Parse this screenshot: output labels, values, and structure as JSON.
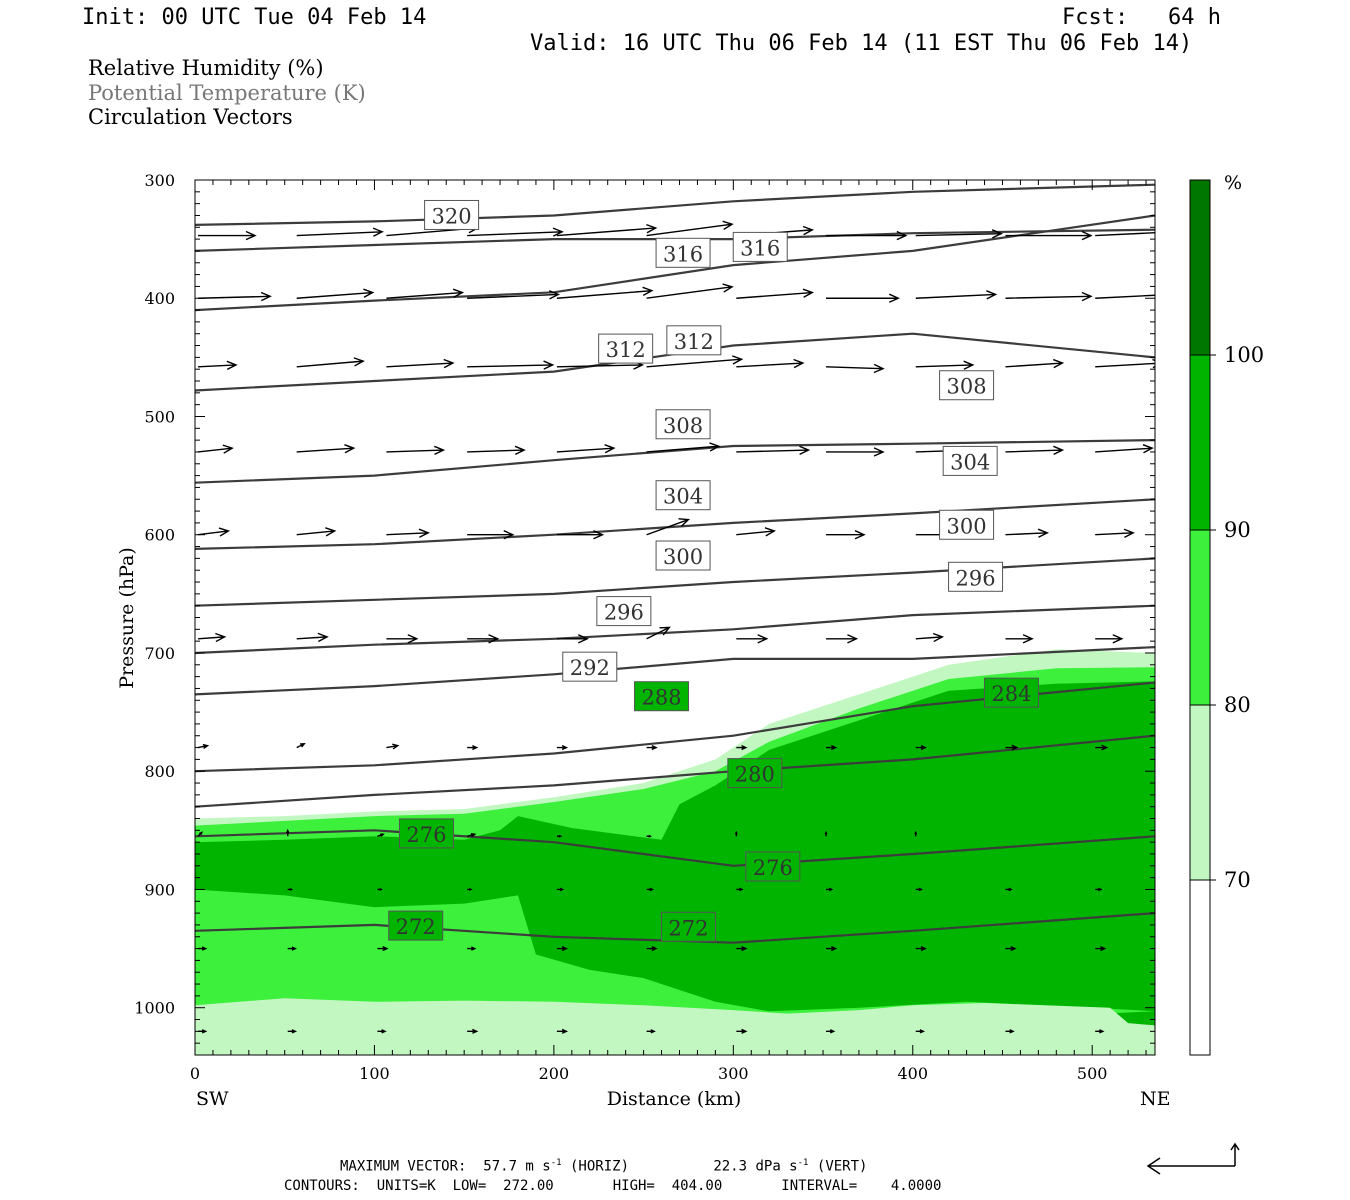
{
  "header": {
    "init": "Init: 00 UTC Tue 04 Feb 14",
    "fcst": "Fcst:   64 h",
    "valid": "Valid: 16 UTC Thu 06 Feb 14 (11 EST Thu 06 Feb 14)"
  },
  "legend": {
    "rh": "Relative Humidity (%)",
    "theta": "Potential Temperature (K)",
    "vectors": "Circulation Vectors"
  },
  "footer": {
    "line1_a": "MAXIMUM VECTOR:  57.7 m s",
    "line1_b": "(HORIZ)",
    "line1_c": "22.3 dPa s",
    "line1_d": "(VERT)",
    "exp": "-1",
    "line2": "CONTOURS:  UNITS=K  LOW=  272.00       HIGH=  404.00       INTERVAL=    4.0000"
  },
  "colors": {
    "rh70": "#c2f7c2",
    "rh80": "#3cf03c",
    "rh90": "#00b400",
    "rh100": "#007800",
    "contour": "#3c3c3c"
  },
  "chart_data": {
    "type": "cross-section",
    "xlabel": "Distance (km)",
    "ylabel": "Pressure (hPa)",
    "xlim": [
      0,
      535
    ],
    "ylim": [
      1040,
      300
    ],
    "x_ticks": [
      0,
      100,
      200,
      300,
      400,
      500
    ],
    "y_ticks": [
      300,
      400,
      500,
      600,
      700,
      800,
      900,
      1000
    ],
    "x_end_labels": {
      "left": "SW",
      "right": "NE"
    },
    "colorbar": {
      "unit": "%",
      "levels": [
        70,
        80,
        90,
        100
      ],
      "labels": [
        "70",
        "80",
        "90",
        "100"
      ]
    },
    "rh_fields": [
      {
        "level": 70,
        "polygon": [
          [
            0,
            1040
          ],
          [
            535,
            1040
          ],
          [
            535,
            700
          ],
          [
            480,
            697
          ],
          [
            420,
            710
          ],
          [
            370,
            735
          ],
          [
            320,
            760
          ],
          [
            290,
            790
          ],
          [
            250,
            810
          ],
          [
            200,
            822
          ],
          [
            150,
            832
          ],
          [
            100,
            834
          ],
          [
            50,
            838
          ],
          [
            0,
            840
          ]
        ]
      },
      {
        "level": 80,
        "polygon": [
          [
            0,
            1040
          ],
          [
            535,
            1040
          ],
          [
            535,
            712
          ],
          [
            480,
            713
          ],
          [
            420,
            722
          ],
          [
            370,
            747
          ],
          [
            320,
            775
          ],
          [
            290,
            800
          ],
          [
            250,
            815
          ],
          [
            200,
            826
          ],
          [
            150,
            836
          ],
          [
            100,
            838
          ],
          [
            50,
            842
          ],
          [
            0,
            846
          ]
        ]
      },
      {
        "level": 90,
        "polygon": [
          [
            0,
            1040
          ],
          [
            535,
            1040
          ],
          [
            535,
            724
          ],
          [
            480,
            726
          ],
          [
            420,
            732
          ],
          [
            370,
            757
          ],
          [
            320,
            782
          ],
          [
            290,
            812
          ],
          [
            270,
            828
          ],
          [
            260,
            858
          ],
          [
            210,
            848
          ],
          [
            180,
            838
          ],
          [
            170,
            850
          ],
          [
            150,
            858
          ],
          [
            100,
            855
          ],
          [
            50,
            858
          ],
          [
            0,
            860
          ],
          [
            0,
            900
          ],
          [
            50,
            905
          ],
          [
            100,
            915
          ],
          [
            150,
            912
          ],
          [
            180,
            905
          ],
          [
            190,
            955
          ],
          [
            220,
            968
          ],
          [
            250,
            975
          ],
          [
            270,
            985
          ],
          [
            290,
            995
          ],
          [
            320,
            1003
          ],
          [
            370,
            1000
          ],
          [
            430,
            995
          ],
          [
            500,
            1000
          ],
          [
            535,
            1003
          ]
        ]
      },
      {
        "level": 70,
        "polygon": [
          [
            0,
            1040
          ],
          [
            535,
            1040
          ],
          [
            535,
            1015
          ],
          [
            520,
            1013
          ],
          [
            510,
            1000
          ],
          [
            440,
            996
          ],
          [
            400,
            998
          ],
          [
            370,
            1002
          ],
          [
            330,
            1005
          ],
          [
            300,
            1002
          ],
          [
            250,
            998
          ],
          [
            200,
            995
          ],
          [
            150,
            994
          ],
          [
            100,
            995
          ],
          [
            50,
            992
          ],
          [
            0,
            998
          ]
        ]
      }
    ],
    "theta_contours": [
      {
        "value": 272,
        "p_at_x": [
          [
            0,
            935
          ],
          [
            100,
            930
          ],
          [
            200,
            940
          ],
          [
            300,
            945
          ],
          [
            400,
            935
          ],
          [
            535,
            920
          ]
        ]
      },
      {
        "value": 276,
        "p_at_x": [
          [
            0,
            855
          ],
          [
            100,
            850
          ],
          [
            200,
            860
          ],
          [
            300,
            880
          ],
          [
            400,
            870
          ],
          [
            535,
            855
          ]
        ]
      },
      {
        "value": 280,
        "p_at_x": [
          [
            0,
            830
          ],
          [
            100,
            820
          ],
          [
            200,
            812
          ],
          [
            300,
            800
          ],
          [
            400,
            790
          ],
          [
            535,
            770
          ]
        ]
      },
      {
        "value": 284,
        "p_at_x": [
          [
            0,
            800
          ],
          [
            100,
            795
          ],
          [
            200,
            785
          ],
          [
            300,
            770
          ],
          [
            400,
            745
          ],
          [
            535,
            725
          ]
        ]
      },
      {
        "value": 288,
        "p_at_x": [
          [
            0,
            735
          ],
          [
            100,
            728
          ],
          [
            200,
            718
          ],
          [
            300,
            705
          ],
          [
            400,
            705
          ],
          [
            535,
            695
          ]
        ]
      },
      {
        "value": 292,
        "p_at_x": [
          [
            0,
            700
          ],
          [
            100,
            693
          ],
          [
            200,
            688
          ],
          [
            300,
            680
          ],
          [
            400,
            668
          ],
          [
            535,
            660
          ]
        ]
      },
      {
        "value": 296,
        "p_at_x": [
          [
            0,
            660
          ],
          [
            100,
            655
          ],
          [
            200,
            650
          ],
          [
            300,
            640
          ],
          [
            400,
            632
          ],
          [
            535,
            620
          ]
        ]
      },
      {
        "value": 300,
        "p_at_x": [
          [
            0,
            612
          ],
          [
            100,
            608
          ],
          [
            200,
            600
          ],
          [
            300,
            590
          ],
          [
            400,
            582
          ],
          [
            535,
            570
          ]
        ]
      },
      {
        "value": 304,
        "p_at_x": [
          [
            0,
            556
          ],
          [
            100,
            550
          ],
          [
            200,
            537
          ],
          [
            300,
            525
          ],
          [
            400,
            523
          ],
          [
            535,
            520
          ]
        ]
      },
      {
        "value": 308,
        "p_at_x": [
          [
            0,
            478
          ],
          [
            100,
            470
          ],
          [
            200,
            462
          ],
          [
            300,
            440
          ],
          [
            400,
            430
          ],
          [
            535,
            450
          ]
        ]
      },
      {
        "value": 312,
        "p_at_x": [
          [
            0,
            410
          ],
          [
            100,
            402
          ],
          [
            200,
            395
          ],
          [
            300,
            372
          ],
          [
            400,
            360
          ],
          [
            535,
            330
          ]
        ]
      },
      {
        "value": 316,
        "p_at_x": [
          [
            0,
            360
          ],
          [
            100,
            355
          ],
          [
            200,
            350
          ],
          [
            300,
            350
          ],
          [
            400,
            345
          ],
          [
            535,
            342
          ]
        ]
      },
      {
        "value": 320,
        "p_at_x": [
          [
            0,
            338
          ],
          [
            100,
            335
          ],
          [
            200,
            330
          ],
          [
            300,
            318
          ],
          [
            400,
            310
          ],
          [
            535,
            304
          ]
        ]
      }
    ],
    "contour_labels": [
      {
        "text": "320",
        "x": 143,
        "p": 330
      },
      {
        "text": "316",
        "x": 272,
        "p": 362
      },
      {
        "text": "316",
        "x": 315,
        "p": 357
      },
      {
        "text": "312",
        "x": 240,
        "p": 443
      },
      {
        "text": "312",
        "x": 278,
        "p": 436
      },
      {
        "text": "308",
        "x": 272,
        "p": 507
      },
      {
        "text": "308",
        "x": 430,
        "p": 474
      },
      {
        "text": "304",
        "x": 272,
        "p": 567
      },
      {
        "text": "304",
        "x": 432,
        "p": 538
      },
      {
        "text": "300",
        "x": 272,
        "p": 618
      },
      {
        "text": "300",
        "x": 430,
        "p": 592
      },
      {
        "text": "296",
        "x": 239,
        "p": 665
      },
      {
        "text": "296",
        "x": 435,
        "p": 636
      },
      {
        "text": "292",
        "x": 220,
        "p": 712
      },
      {
        "text": "288",
        "x": 260,
        "p": 737
      },
      {
        "text": "284",
        "x": 455,
        "p": 734
      },
      {
        "text": "280",
        "x": 312,
        "p": 802
      },
      {
        "text": "276",
        "x": 129,
        "p": 853
      },
      {
        "text": "276",
        "x": 322,
        "p": 881
      },
      {
        "text": "272",
        "x": 123,
        "p": 931
      },
      {
        "text": "272",
        "x": 275,
        "p": 932
      }
    ],
    "vector_rows": [
      {
        "p": 347,
        "x": [
          0,
          55,
          105,
          150,
          200,
          250,
          300,
          350,
          400,
          450,
          500
        ],
        "u": [
          30,
          45,
          48,
          50,
          52,
          45,
          40,
          42,
          45,
          45,
          42
        ],
        "w": [
          0,
          2,
          4,
          2,
          4,
          6,
          3,
          0,
          1,
          0,
          2
        ]
      },
      {
        "p": 400,
        "x": [
          0,
          55,
          105,
          150,
          200,
          250,
          300,
          350,
          400,
          450,
          500
        ],
        "u": [
          38,
          40,
          40,
          48,
          50,
          45,
          40,
          38,
          42,
          45,
          40
        ],
        "w": [
          1,
          3,
          3,
          2,
          4,
          6,
          3,
          0,
          2,
          1,
          2
        ]
      },
      {
        "p": 458,
        "x": [
          0,
          55,
          105,
          150,
          200,
          250,
          300,
          350,
          400,
          450,
          500
        ],
        "u": [
          20,
          35,
          35,
          45,
          45,
          50,
          35,
          30,
          30,
          30,
          35
        ],
        "w": [
          1,
          3,
          2,
          1,
          1,
          4,
          2,
          -1,
          1,
          2,
          2
        ]
      },
      {
        "p": 530,
        "x": [
          0,
          55,
          105,
          150,
          200,
          250,
          300,
          350,
          400,
          450,
          500
        ],
        "u": [
          18,
          30,
          30,
          30,
          30,
          38,
          38,
          30,
          30,
          30,
          30
        ],
        "w": [
          2,
          2,
          1,
          1,
          2,
          3,
          1,
          0,
          1,
          1,
          2
        ]
      },
      {
        "p": 600,
        "x": [
          0,
          55,
          105,
          150,
          200,
          250,
          300,
          350,
          400,
          450,
          500
        ],
        "u": [
          16,
          20,
          22,
          24,
          24,
          22,
          20,
          20,
          20,
          22,
          20
        ],
        "w": [
          2,
          2,
          1,
          0,
          0,
          8,
          2,
          0,
          0,
          1,
          1
        ]
      },
      {
        "p": 688,
        "x": [
          0,
          55,
          105,
          150,
          200,
          250,
          300,
          350,
          400,
          450,
          500
        ],
        "u": [
          14,
          16,
          16,
          16,
          16,
          12,
          16,
          16,
          14,
          14,
          14
        ],
        "w": [
          1,
          1,
          0,
          0,
          0,
          6,
          0,
          0,
          1,
          0,
          0
        ]
      },
      {
        "p": 780,
        "x": [
          0,
          55,
          105,
          150,
          200,
          250,
          300,
          350,
          400,
          450,
          500
        ],
        "u": [
          5,
          4,
          6,
          5,
          5,
          5,
          5,
          5,
          5,
          6,
          6
        ],
        "w": [
          1,
          2,
          1,
          0,
          0,
          0,
          0,
          0,
          0,
          0,
          0
        ]
      },
      {
        "p": 855,
        "x": [
          0,
          50,
          100,
          150,
          200,
          250,
          300,
          350,
          400,
          450,
          500
        ],
        "u": [
          2,
          0,
          3,
          4,
          2,
          2,
          0,
          0,
          0,
          0,
          0
        ],
        "w": [
          2,
          3,
          1,
          1,
          0,
          0,
          2,
          2,
          2,
          0,
          0
        ]
      },
      {
        "p": 900,
        "x": [
          0,
          50,
          100,
          150,
          200,
          250,
          300,
          350,
          400,
          450,
          500
        ],
        "u": [
          0,
          2,
          2,
          2,
          3,
          3,
          3,
          3,
          3,
          3,
          3
        ],
        "w": [
          0,
          0,
          0,
          0,
          0,
          0,
          0,
          0,
          0,
          0,
          0
        ]
      },
      {
        "p": 950,
        "x": [
          0,
          50,
          100,
          150,
          200,
          250,
          300,
          350,
          400,
          450,
          500
        ],
        "u": [
          4,
          4,
          5,
          4,
          5,
          5,
          5,
          5,
          5,
          5,
          5
        ],
        "w": [
          0,
          0,
          0,
          0,
          0,
          0,
          0,
          0,
          0,
          0,
          0
        ]
      },
      {
        "p": 1020,
        "x": [
          0,
          50,
          100,
          150,
          200,
          250,
          300,
          350,
          400,
          450,
          500
        ],
        "u": [
          4,
          4,
          4,
          5,
          5,
          4,
          5,
          4,
          4,
          4,
          4
        ],
        "w": [
          0,
          0,
          0,
          0,
          0,
          0,
          0,
          0,
          0,
          0,
          0
        ]
      }
    ]
  }
}
